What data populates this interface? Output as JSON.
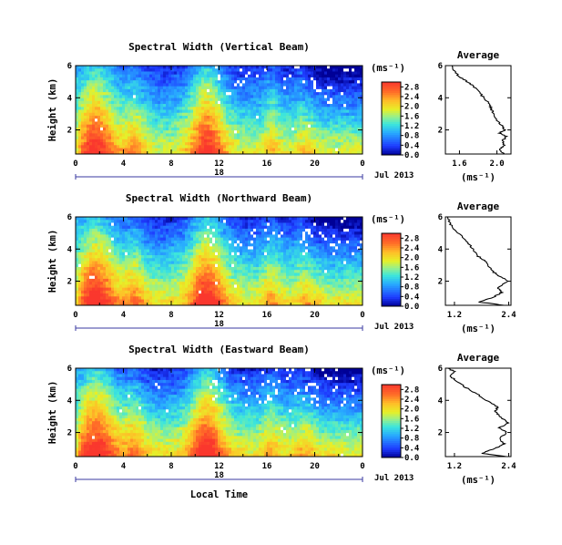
{
  "chart_data": [
    {
      "type": "heatmap",
      "title": "Spectral Width (Vertical Beam)",
      "ylabel": "Height (km)",
      "y_tick_labels": [
        "2",
        "4",
        "6"
      ],
      "ylim": [
        0.5,
        6
      ],
      "x_tick_labels": [
        "0",
        "4",
        "8",
        "12",
        "16",
        "20",
        "0"
      ],
      "xlim": [
        0,
        24
      ],
      "date_label": "18",
      "date_suffix": "Jul 2013",
      "colorbar": {
        "unit_label": "(ms⁻¹)",
        "tick_labels": [
          "0.0",
          "0.4",
          "0.8",
          "1.2",
          "1.6",
          "2.0",
          "2.4",
          "2.8"
        ],
        "range": [
          0.0,
          3.0
        ]
      },
      "profile": {
        "title": "Average",
        "xlabel": "(ms⁻¹)",
        "x_tick_labels": [
          "1.6",
          "2.0"
        ],
        "xlim": [
          1.45,
          2.15
        ],
        "y": [
          0.5,
          0.8,
          1.0,
          1.3,
          1.6,
          1.8,
          2.0,
          2.3,
          2.6,
          3.0,
          3.3,
          3.6,
          4.0,
          4.4,
          4.8,
          5.0,
          5.3,
          5.6,
          6.0
        ],
        "x": [
          2.08,
          2.02,
          2.08,
          2.06,
          2.1,
          2.03,
          2.08,
          2.05,
          2.0,
          1.97,
          1.94,
          1.92,
          1.86,
          1.8,
          1.73,
          1.68,
          1.6,
          1.55,
          1.52
        ]
      }
    },
    {
      "type": "heatmap",
      "title": "Spectral Width (Northward Beam)",
      "ylabel": "Height (km)",
      "y_tick_labels": [
        "2",
        "4",
        "6"
      ],
      "ylim": [
        0.5,
        6
      ],
      "x_tick_labels": [
        "0",
        "4",
        "8",
        "12",
        "16",
        "20",
        "0"
      ],
      "xlim": [
        0,
        24
      ],
      "date_label": "18",
      "date_suffix": "Jul 2013",
      "colorbar": {
        "unit_label": "(ms⁻¹)",
        "tick_labels": [
          "0.0",
          "0.4",
          "0.8",
          "1.2",
          "1.6",
          "2.0",
          "2.4",
          "2.8"
        ],
        "range": [
          0.0,
          3.0
        ]
      },
      "profile": {
        "title": "Average",
        "xlabel": "(ms⁻¹)",
        "x_tick_labels": [
          "1.2",
          "2.4"
        ],
        "xlim": [
          1.0,
          2.45
        ],
        "y": [
          0.5,
          0.7,
          1.0,
          1.3,
          1.6,
          2.0,
          2.3,
          2.6,
          3.0,
          3.3,
          3.6,
          4.0,
          4.4,
          4.8,
          5.2,
          5.6,
          6.0
        ],
        "x": [
          2.3,
          1.75,
          2.05,
          2.25,
          2.15,
          2.4,
          2.2,
          2.05,
          1.95,
          1.85,
          1.7,
          1.6,
          1.5,
          1.35,
          1.2,
          1.1,
          1.05
        ]
      }
    },
    {
      "type": "heatmap",
      "title": "Spectral Width (Eastward Beam)",
      "ylabel": "Height (km)",
      "y_tick_labels": [
        "2",
        "4",
        "6"
      ],
      "ylim": [
        0.5,
        6
      ],
      "x_tick_labels": [
        "0",
        "4",
        "8",
        "12",
        "16",
        "20",
        "0"
      ],
      "xlim": [
        0,
        24
      ],
      "date_label": "18",
      "date_suffix": "Jul 2013",
      "xlabel": "Local Time",
      "colorbar": {
        "unit_label": "(ms⁻¹)",
        "tick_labels": [
          "0.0",
          "0.4",
          "0.8",
          "1.2",
          "1.6",
          "2.0",
          "2.4",
          "2.8"
        ],
        "range": [
          0.0,
          3.0
        ]
      },
      "profile": {
        "title": "Average",
        "xlabel": "(ms⁻¹)",
        "x_tick_labels": [
          "1.2",
          "2.4"
        ],
        "xlim": [
          1.0,
          2.45
        ],
        "y": [
          0.5,
          0.7,
          1.0,
          1.3,
          1.6,
          2.0,
          2.3,
          2.6,
          3.0,
          3.3,
          3.6,
          4.0,
          4.4,
          4.8,
          5.2,
          5.5,
          5.8,
          6.0
        ],
        "x": [
          2.35,
          1.8,
          2.1,
          2.3,
          2.2,
          2.35,
          2.2,
          2.4,
          2.2,
          2.1,
          2.15,
          1.9,
          1.7,
          1.45,
          1.25,
          1.1,
          1.2,
          1.05
        ]
      }
    }
  ]
}
